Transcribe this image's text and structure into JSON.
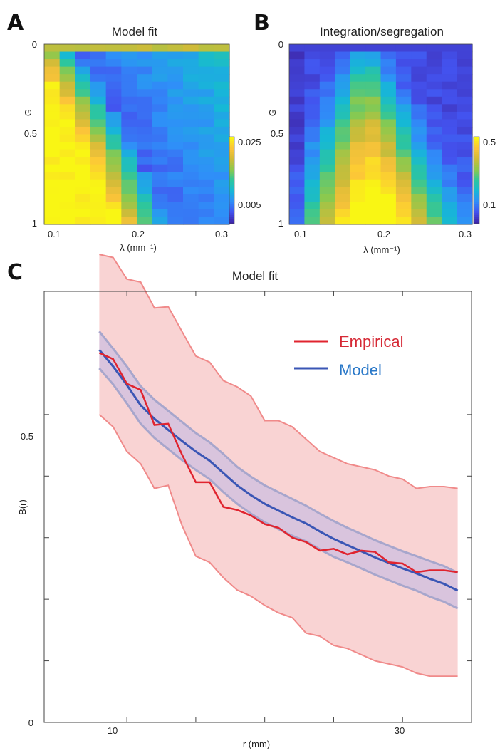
{
  "panels": {
    "A": "A",
    "B": "B",
    "C": "C"
  },
  "colormap": [
    "#3e26a8",
    "#4353ef",
    "#2f8ff8",
    "#16b8d6",
    "#2ec69c",
    "#8bc94e",
    "#d1bb38",
    "#fcc439",
    "#f9f614"
  ],
  "chart_data": [
    {
      "id": "A",
      "type": "heatmap",
      "title": "Model fit",
      "xlabel": "λ (mm⁻¹)",
      "ylabel": "G",
      "xticks": [
        "0.1",
        "0.2",
        "0.3"
      ],
      "yticks": [
        "0",
        "0.5",
        "1"
      ],
      "colorbar_ticks": [
        "0.025",
        "0.005"
      ],
      "colorbar_range": [
        0.003,
        0.028
      ],
      "xlim": [
        0.09,
        0.31
      ],
      "ylim": [
        0,
        1
      ],
      "rows": 24,
      "cols": 12
    },
    {
      "id": "B",
      "type": "heatmap",
      "title": "Integration/segregation",
      "xlabel": "λ (mm⁻¹)",
      "ylabel": "G",
      "xticks": [
        "0.1",
        "0.2",
        "0.3"
      ],
      "yticks": [
        "0",
        "0.5",
        "1"
      ],
      "colorbar_ticks": [
        "0.5",
        "0.1"
      ],
      "colorbar_range": [
        0.05,
        0.52
      ],
      "xlim": [
        0.09,
        0.31
      ],
      "ylim": [
        0,
        1
      ],
      "rows": 24,
      "cols": 12
    },
    {
      "id": "C",
      "type": "line",
      "title": "Model fit",
      "xlabel": "r (mm)",
      "ylabel": "B(r)",
      "xticks": [
        "10",
        "30"
      ],
      "yticks": [
        "0",
        "0.5"
      ],
      "xlim": [
        4,
        35
      ],
      "ylim": [
        0,
        0.7
      ],
      "x": [
        8,
        9,
        10,
        11,
        12,
        13,
        14,
        15,
        16,
        17,
        18,
        19,
        20,
        21,
        22,
        23,
        24,
        25,
        26,
        27,
        28,
        29,
        30,
        31,
        32,
        33,
        34
      ],
      "series": [
        {
          "name": "Empirical",
          "color": "#e0242f",
          "values": [
            0.6,
            0.59,
            0.55,
            0.54,
            0.483,
            0.485,
            0.435,
            0.39,
            0.39,
            0.35,
            0.345,
            0.336,
            0.322,
            0.316,
            0.3,
            0.293,
            0.279,
            0.282,
            0.273,
            0.279,
            0.277,
            0.26,
            0.258,
            0.244,
            0.247,
            0.247,
            0.244
          ],
          "band_upper": [
            0.76,
            0.755,
            0.72,
            0.715,
            0.673,
            0.675,
            0.635,
            0.595,
            0.585,
            0.555,
            0.545,
            0.53,
            0.49,
            0.49,
            0.48,
            0.46,
            0.44,
            0.43,
            0.42,
            0.415,
            0.41,
            0.4,
            0.395,
            0.38,
            0.383,
            0.383,
            0.38
          ],
          "band_lower": [
            0.5,
            0.48,
            0.44,
            0.42,
            0.38,
            0.385,
            0.32,
            0.27,
            0.26,
            0.235,
            0.215,
            0.205,
            0.19,
            0.178,
            0.17,
            0.145,
            0.14,
            0.125,
            0.12,
            0.11,
            0.1,
            0.095,
            0.09,
            0.08,
            0.075,
            0.075,
            0.075
          ]
        },
        {
          "name": "Model",
          "color": "#3a56b5",
          "values": [
            0.605,
            0.578,
            0.548,
            0.515,
            0.493,
            0.475,
            0.457,
            0.44,
            0.425,
            0.405,
            0.385,
            0.369,
            0.355,
            0.344,
            0.333,
            0.323,
            0.31,
            0.298,
            0.288,
            0.278,
            0.268,
            0.259,
            0.25,
            0.242,
            0.233,
            0.225,
            0.214
          ],
          "band_upper": [
            0.635,
            0.607,
            0.578,
            0.546,
            0.524,
            0.506,
            0.488,
            0.47,
            0.455,
            0.436,
            0.415,
            0.399,
            0.385,
            0.374,
            0.363,
            0.352,
            0.339,
            0.327,
            0.316,
            0.306,
            0.296,
            0.287,
            0.278,
            0.27,
            0.262,
            0.254,
            0.243
          ],
          "band_lower": [
            0.575,
            0.549,
            0.518,
            0.485,
            0.462,
            0.444,
            0.426,
            0.41,
            0.395,
            0.374,
            0.355,
            0.339,
            0.325,
            0.314,
            0.303,
            0.294,
            0.281,
            0.269,
            0.26,
            0.25,
            0.24,
            0.231,
            0.222,
            0.214,
            0.204,
            0.196,
            0.185
          ]
        }
      ],
      "legend": "top-right"
    }
  ]
}
